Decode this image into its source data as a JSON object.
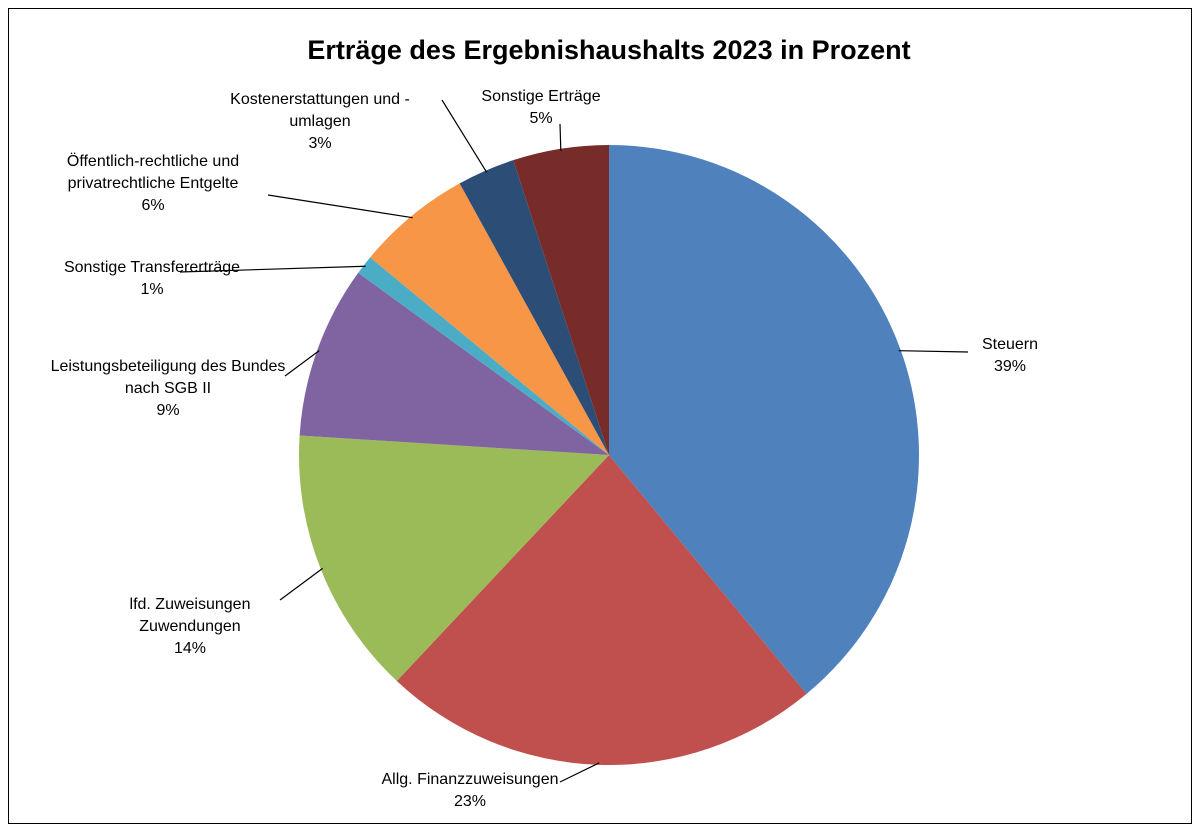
{
  "chart_data": {
    "type": "pie",
    "title": "Erträge des Ergebnishaushalts 2023 in Prozent",
    "categories": [
      "Steuern",
      "Allg. Finanzzuweisungen",
      "lfd. Zuweisungen Zuwendungen",
      "Leistungsbeteiligung des Bundes nach SGB II",
      "Sonstige Transfererträge",
      "Öffentlich-rechtliche und privatrechtliche Entgelte",
      "Kostenerstattungen und -umlagen",
      "Sonstige Erträge"
    ],
    "values": [
      39,
      23,
      14,
      9,
      1,
      6,
      3,
      5
    ],
    "value_labels": [
      "39%",
      "23%",
      "14%",
      "9%",
      "1%",
      "6%",
      "3%",
      "5%"
    ],
    "colors": [
      "#4f81bd",
      "#c0504d",
      "#9bbb59",
      "#8064a2",
      "#4bacc6",
      "#f79646",
      "#2c4d75",
      "#772c2a"
    ]
  }
}
